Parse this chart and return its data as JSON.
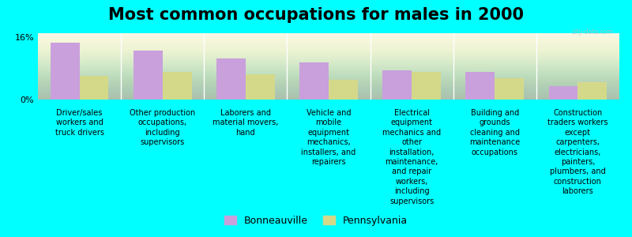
{
  "title": "Most common occupations for males in 2000",
  "categories": [
    "Driver/sales\nworkers and\ntruck drivers",
    "Other production\noccupations,\nincluding\nsupervisors",
    "Laborers and\nmaterial movers,\nhand",
    "Vehicle and\nmobile\nequipment\nmechanics,\ninstallers, and\nrepairers",
    "Electrical\nequipment\nmechanics and\nother\ninstallation,\nmaintenance,\nand repair\nworkers,\nincluding\nsupervisors",
    "Building and\ngrounds\ncleaning and\nmaintenance\noccupations",
    "Construction\ntraders workers\nexcept\ncarpenters,\nelectricians,\npainters,\nplumbers, and\nconstruction\nlaborers"
  ],
  "bonneauville_values": [
    14.5,
    12.5,
    10.5,
    9.5,
    7.5,
    7.0,
    3.5
  ],
  "pennsylvania_values": [
    6.0,
    7.0,
    6.5,
    5.0,
    7.0,
    5.5,
    4.5
  ],
  "bonneauville_color": "#c9a0dc",
  "pennsylvania_color": "#d4d98a",
  "background_color": "#00ffff",
  "plot_bg_top": "#d8e8c0",
  "plot_bg_bottom": "#f5f5e8",
  "ylim": [
    0,
    17
  ],
  "ytick_vals": [
    0,
    16
  ],
  "ytick_labels": [
    "0%",
    "16%"
  ],
  "bar_width": 0.35,
  "legend_labels": [
    "Bonneauville",
    "Pennsylvania"
  ],
  "title_fontsize": 15,
  "label_fontsize": 7.0
}
